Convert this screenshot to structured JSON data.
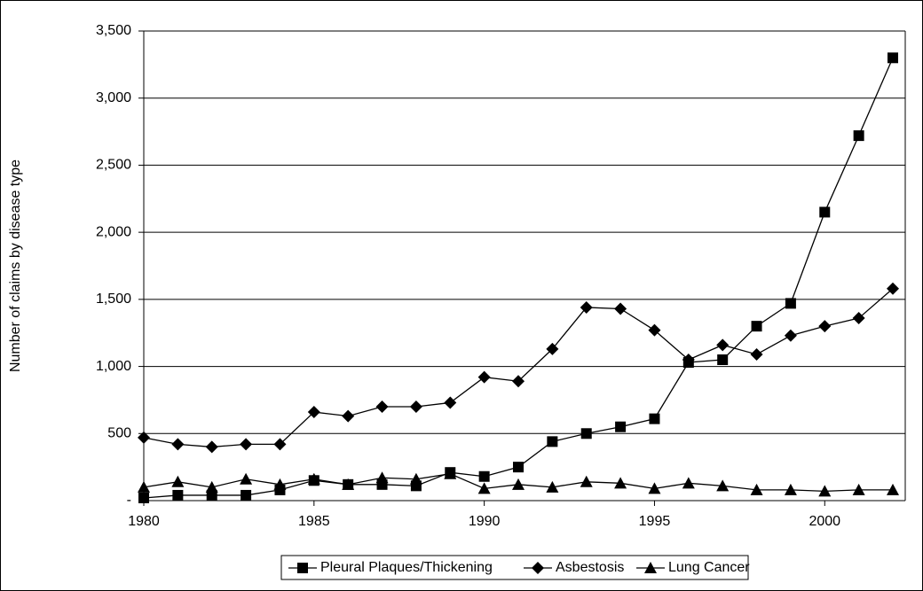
{
  "chart_data": {
    "type": "line",
    "y_label": "Number of claims by disease type",
    "x": [
      1980,
      1981,
      1982,
      1983,
      1984,
      1985,
      1986,
      1987,
      1988,
      1989,
      1990,
      1991,
      1992,
      1993,
      1994,
      1995,
      1996,
      1997,
      1998,
      1999,
      2000,
      2001,
      2002
    ],
    "series": [
      {
        "name": "Pleural Plaques/Thickening",
        "color": "#000000",
        "marker": "square",
        "values": [
          20,
          40,
          40,
          40,
          80,
          150,
          120,
          120,
          110,
          210,
          180,
          250,
          440,
          500,
          550,
          610,
          1030,
          1050,
          1300,
          1470,
          2150,
          2720,
          3300
        ]
      },
      {
        "name": "Asbestosis",
        "color": "#000000",
        "marker": "diamond",
        "values": [
          470,
          420,
          400,
          420,
          420,
          660,
          630,
          700,
          700,
          730,
          920,
          890,
          1130,
          1440,
          1430,
          1270,
          1050,
          1160,
          1090,
          1230,
          1300,
          1360,
          1580
        ]
      },
      {
        "name": "Lung Cancer",
        "color": "#000000",
        "marker": "triangle",
        "values": [
          100,
          140,
          100,
          160,
          120,
          160,
          120,
          170,
          160,
          200,
          90,
          120,
          100,
          140,
          130,
          90,
          130,
          110,
          80,
          80,
          70,
          80,
          80
        ]
      }
    ],
    "xlim": [
      1980,
      2002
    ],
    "xticks": [
      1980,
      1985,
      1990,
      1995,
      2000
    ],
    "ylim": [
      0,
      3500
    ],
    "yticks": [
      {
        "value": 0,
        "label": "-"
      },
      500,
      {
        "value": 1000,
        "label": "1,000"
      },
      {
        "value": 1500,
        "label": "1,500"
      },
      {
        "value": 2000,
        "label": "2,000"
      },
      {
        "value": 2500,
        "label": "2,500"
      },
      {
        "value": 3000,
        "label": "3,000"
      },
      {
        "value": 3500,
        "label": "3,500"
      }
    ],
    "grid": true,
    "legend": "bottom"
  }
}
